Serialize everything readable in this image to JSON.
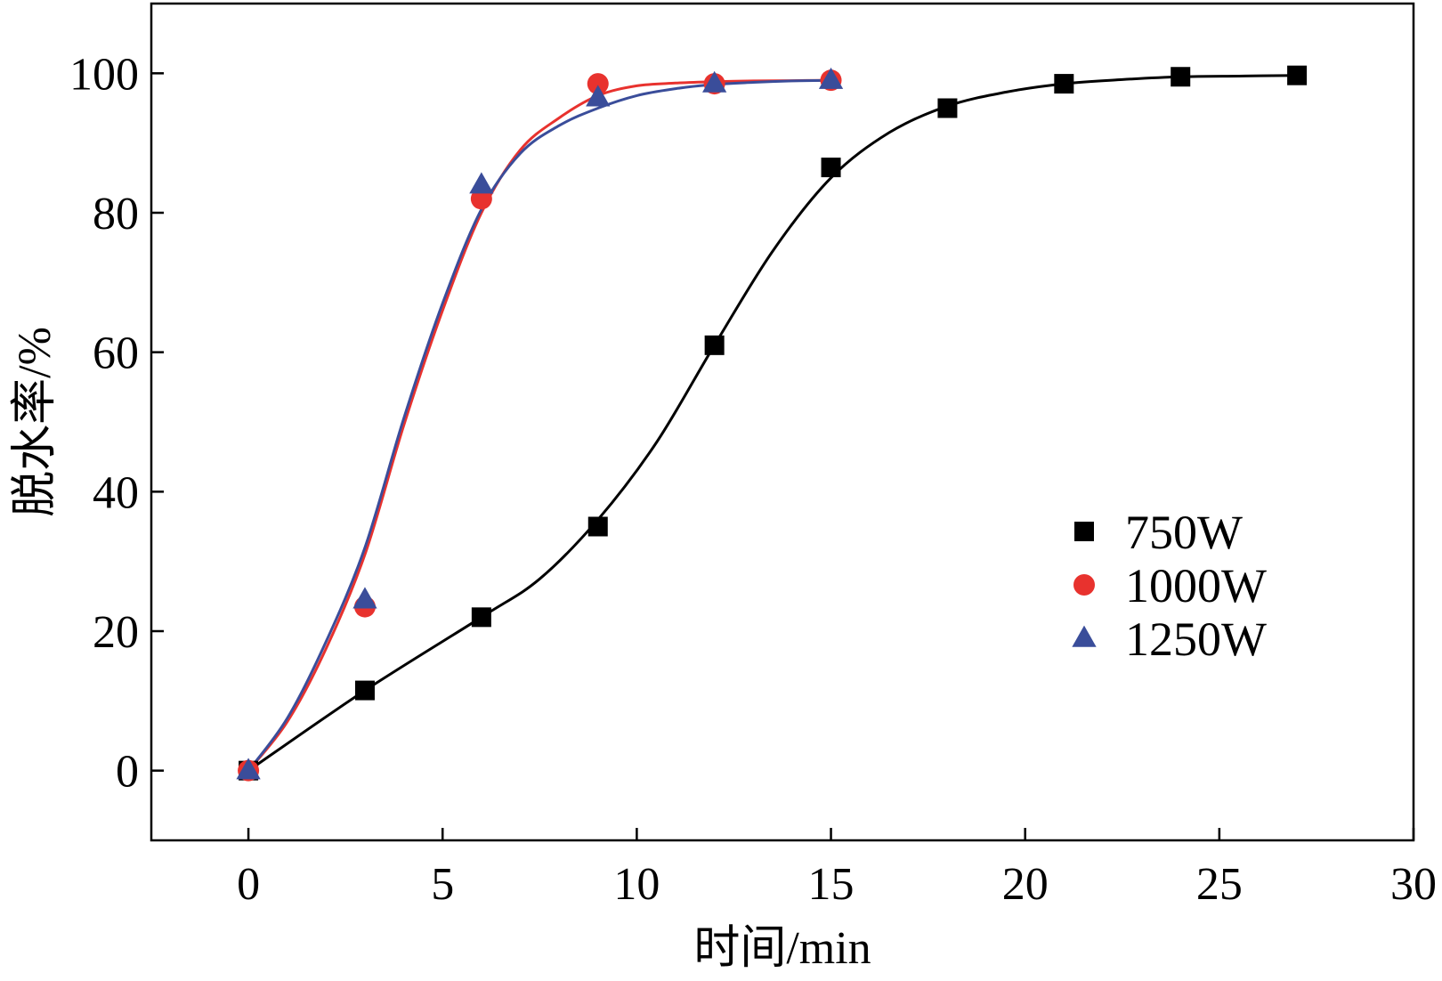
{
  "chart_data": {
    "type": "scatter",
    "xlabel": "时间/min",
    "ylabel": "脱水率/%",
    "xlim": [
      -2.5,
      30
    ],
    "ylim": [
      -10,
      110
    ],
    "xticks": [
      0,
      5,
      10,
      15,
      20,
      25,
      30
    ],
    "yticks": [
      0,
      20,
      40,
      60,
      80,
      100
    ],
    "grid": false,
    "legend_position": "right",
    "series": [
      {
        "name": "750W",
        "marker": "square",
        "color": "#000000",
        "x": [
          0,
          3,
          6,
          9,
          12,
          15,
          18,
          21,
          24,
          27
        ],
        "y": [
          0,
          11.5,
          22,
          35,
          61,
          86.5,
          95,
          98.5,
          99.5,
          99.7
        ]
      },
      {
        "name": "1000W",
        "marker": "circle",
        "color": "#e8322e",
        "x": [
          0,
          3,
          6,
          9,
          12,
          15
        ],
        "y": [
          0,
          23.5,
          82,
          98.5,
          98.5,
          99
        ]
      },
      {
        "name": "1250W",
        "marker": "triangle",
        "color": "#3a4d9a",
        "x": [
          0,
          3,
          6,
          9,
          12,
          15
        ],
        "y": [
          0,
          24.5,
          84,
          96.5,
          98.5,
          99
        ]
      }
    ],
    "fit_curves": [
      {
        "series": "750W",
        "color": "#000000",
        "x": [
          0,
          3,
          6,
          7.5,
          9,
          10.5,
          12,
          13.5,
          15,
          16.5,
          18,
          19.5,
          21,
          22.5,
          24,
          25.5,
          27
        ],
        "y": [
          0,
          11.5,
          22,
          27.5,
          36,
          47,
          61,
          74.5,
          85,
          91.5,
          95.3,
          97.3,
          98.5,
          99.1,
          99.5,
          99.6,
          99.7
        ]
      },
      {
        "series": "1000W",
        "color": "#e8322e",
        "x": [
          0,
          1,
          2,
          3,
          4,
          5,
          6,
          7,
          8,
          9,
          10,
          11,
          12,
          13,
          14,
          15
        ],
        "y": [
          0,
          7,
          17.5,
          31,
          49.5,
          66,
          80,
          89,
          93.6,
          96.8,
          98.2,
          98.6,
          98.8,
          98.9,
          98.95,
          99
        ]
      },
      {
        "series": "1250W",
        "color": "#3a4d9a",
        "x": [
          0,
          1,
          2,
          3,
          4,
          5,
          6,
          7,
          8,
          9,
          10,
          11,
          12,
          13,
          14,
          15
        ],
        "y": [
          0,
          7.5,
          18.5,
          32,
          50.5,
          67,
          80.5,
          88.5,
          92.5,
          95,
          96.8,
          97.8,
          98.4,
          98.7,
          98.9,
          99
        ]
      }
    ]
  }
}
